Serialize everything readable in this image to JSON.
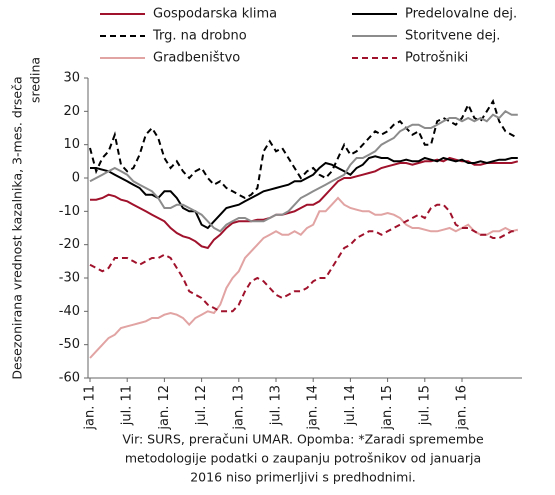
{
  "chart_data": {
    "type": "line",
    "y_label_lines": [
      "Desezonirana vrednost kazalnika, 3-mes. drseča",
      "sredina"
    ],
    "footer_lines": [
      "Vir: SURS, preračuni UMAR. Opomba: *Zaradi spremembe",
      "metodologije podatki o zaupanju potrošnikov od januarja",
      "2016 niso primerljivi s predhodnimi."
    ],
    "categories": [
      "jan. 11",
      null,
      null,
      null,
      null,
      null,
      "jul. 11",
      null,
      null,
      null,
      null,
      null,
      "jan. 12",
      null,
      null,
      null,
      null,
      null,
      "jul. 12",
      null,
      null,
      null,
      null,
      null,
      "jan. 13",
      null,
      null,
      null,
      null,
      null,
      "jul. 13",
      null,
      null,
      null,
      null,
      null,
      "jan. 14",
      null,
      null,
      null,
      null,
      null,
      "jul. 14",
      null,
      null,
      null,
      null,
      null,
      "jan. 15",
      null,
      null,
      null,
      null,
      null,
      "jul. 15",
      null,
      null,
      null,
      null,
      null,
      "jan. 16",
      null,
      null,
      null,
      null,
      null,
      null,
      null,
      null,
      null
    ],
    "ylim": [
      -60,
      30
    ],
    "yticks": [
      -60,
      -50,
      -40,
      -30,
      -20,
      -10,
      0,
      10,
      20,
      30
    ],
    "series": [
      {
        "name": "Gospodarska klima",
        "color": "#a0112b",
        "dash": false,
        "values": [
          -6.5,
          -6.5,
          -6,
          -5,
          -5.5,
          -6.5,
          -7,
          -8,
          -9,
          -10,
          -11,
          -12,
          -13,
          -15,
          -16.5,
          -17.5,
          -18,
          -19,
          -20.5,
          -21,
          -18.5,
          -17,
          -15,
          -13.5,
          -13,
          -13,
          -13,
          -12.5,
          -12.5,
          -12,
          -11,
          -11,
          -10.5,
          -10,
          -9,
          -8,
          -8,
          -7,
          -5,
          -3,
          -1,
          0,
          0,
          0.5,
          1,
          1.5,
          2,
          3,
          3.5,
          4,
          4.5,
          4.5,
          4,
          4.5,
          5,
          5,
          5.5,
          5,
          6,
          5.5,
          5,
          5,
          4,
          4,
          4.5,
          4.5,
          4.5,
          4.5,
          4.5,
          5
        ]
      },
      {
        "name": "Predelovalne dej.",
        "color": "#000000",
        "dash": false,
        "values": [
          3,
          3,
          2.5,
          2,
          1,
          0,
          -1,
          -2,
          -3,
          -5,
          -5,
          -6,
          -4,
          -4,
          -6,
          -9,
          -10,
          -10,
          -14,
          -15,
          -13,
          -11,
          -9,
          -8.5,
          -8,
          -7,
          -6,
          -5,
          -4,
          -3.5,
          -3,
          -2.5,
          -2,
          -1,
          -1,
          0,
          1,
          3,
          4.5,
          4,
          3,
          2,
          1,
          3,
          4,
          6,
          6.5,
          6,
          6,
          5,
          5,
          5.5,
          5,
          5,
          6,
          5.5,
          5,
          6,
          5.5,
          5,
          5.5,
          4.5,
          4.5,
          5,
          4.5,
          5,
          5.5,
          5.5,
          6,
          6
        ]
      },
      {
        "name": "Trg. na drobno",
        "color": "#000000",
        "dash": true,
        "values": [
          9,
          2,
          6,
          8,
          13,
          4,
          2,
          3,
          7,
          13,
          15,
          12,
          6,
          3,
          5,
          2,
          0,
          2,
          3,
          0,
          -2,
          -1,
          -3,
          -4,
          -5,
          -6,
          -5,
          -3,
          8,
          11,
          8,
          9,
          6,
          3,
          0,
          2,
          3,
          1,
          0,
          2,
          6,
          10,
          7,
          8,
          10,
          12,
          14,
          13,
          14,
          16,
          17,
          15,
          13,
          14,
          10,
          10,
          17,
          18,
          17,
          16,
          18,
          22,
          18,
          17,
          20,
          23,
          17,
          14,
          13,
          12
        ]
      },
      {
        "name": "Storitvene dej.",
        "color": "#8c8c8c",
        "dash": false,
        "values": [
          -1,
          0,
          1,
          2,
          3,
          2,
          1,
          -1,
          -2,
          -3,
          -4,
          -6,
          -9,
          -9,
          -8,
          -8,
          -9,
          -10,
          -11,
          -13,
          -15,
          -16,
          -14,
          -13,
          -12,
          -12,
          -13,
          -13,
          -13,
          -12,
          -11,
          -11,
          -10,
          -8,
          -6,
          -5,
          -4,
          -3,
          -2,
          -1,
          0,
          1,
          4,
          6,
          6,
          7,
          8,
          10,
          11,
          12,
          14,
          15,
          16,
          16,
          15,
          15,
          16,
          17,
          18,
          18,
          17,
          18,
          17,
          18,
          17,
          19,
          18,
          20,
          19,
          19
        ]
      },
      {
        "name": "Gradbeništvo",
        "color": "#e2a3a3",
        "dash": false,
        "values": [
          -54,
          -52,
          -50,
          -48,
          -47,
          -45,
          -44.5,
          -44,
          -43.5,
          -43,
          -42,
          -42,
          -41,
          -40.5,
          -41,
          -42,
          -44,
          -42,
          -41,
          -40,
          -40.5,
          -38,
          -33,
          -30,
          -28,
          -24,
          -22,
          -20,
          -18,
          -17,
          -16,
          -17,
          -17,
          -16,
          -17,
          -15,
          -14,
          -10,
          -10,
          -8,
          -6,
          -8,
          -9,
          -9.5,
          -10,
          -10,
          -11,
          -11,
          -10.5,
          -11,
          -12,
          -14,
          -15,
          -15,
          -15.5,
          -16,
          -16,
          -15.5,
          -15,
          -16,
          -15,
          -14,
          -16,
          -17,
          -17,
          -16,
          -16,
          -15,
          -16,
          -15.5
        ]
      },
      {
        "name": "Potrošniki",
        "color": "#a0112b",
        "dash": true,
        "values": [
          -26,
          -27,
          -28,
          -27,
          -24,
          -24,
          -24,
          -25,
          -26,
          -25,
          -24,
          -24,
          -23,
          -24,
          -27,
          -30,
          -34,
          -35,
          -36,
          -38,
          -39,
          -40,
          -40,
          -40,
          -38,
          -34,
          -31,
          -30,
          -31,
          -33,
          -35,
          -36,
          -35,
          -34,
          -34,
          -33,
          -31,
          -30,
          -30,
          -27,
          -24,
          -21,
          -20,
          -18,
          -17,
          -16,
          -16,
          -17,
          -16,
          -15,
          -14,
          -13,
          -12,
          -11,
          -12,
          -9,
          -8,
          -8,
          -10,
          -14,
          -15,
          -15,
          -16,
          -17,
          -17,
          -18,
          -18,
          -17,
          -16,
          -16
        ]
      }
    ]
  }
}
